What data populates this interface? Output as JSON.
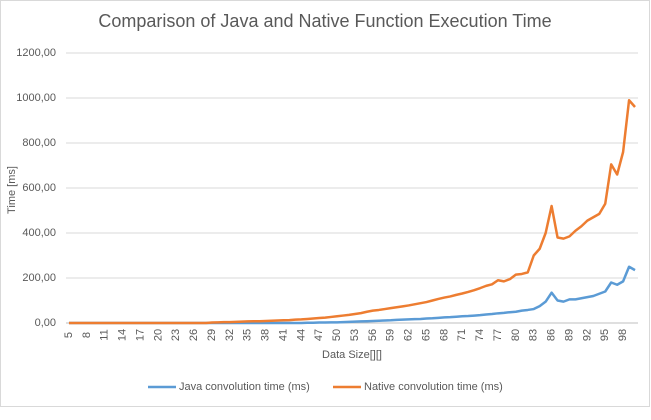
{
  "chart_data": {
    "type": "line",
    "title": "Comparison of Java and Native Function Execution Time",
    "x_label": "Data Size[][]",
    "y_label": "Time [ms]",
    "x": [
      5,
      6,
      7,
      8,
      9,
      10,
      11,
      12,
      13,
      14,
      15,
      16,
      17,
      18,
      19,
      20,
      21,
      22,
      23,
      24,
      25,
      26,
      27,
      28,
      29,
      30,
      31,
      32,
      33,
      34,
      35,
      36,
      37,
      38,
      39,
      40,
      41,
      42,
      43,
      44,
      45,
      46,
      47,
      48,
      49,
      50,
      51,
      52,
      53,
      54,
      55,
      56,
      57,
      58,
      59,
      60,
      61,
      62,
      63,
      64,
      65,
      66,
      67,
      68,
      69,
      70,
      71,
      72,
      73,
      74,
      75,
      76,
      77,
      78,
      79,
      80,
      81,
      82,
      83,
      84,
      85,
      86,
      87,
      88,
      89,
      90,
      91,
      92,
      93,
      94,
      95,
      96,
      97,
      98,
      99,
      100
    ],
    "series": [
      {
        "name": "Java convolution time (ms)",
        "color": "#5b9bd5",
        "values": [
          0,
          0,
          0,
          0,
          0,
          0,
          0,
          0,
          0,
          0,
          0,
          0,
          0,
          0,
          0,
          0,
          0,
          0,
          0,
          0,
          0,
          0,
          0,
          0,
          0,
          0,
          0,
          0,
          0,
          0,
          0,
          0,
          0,
          0,
          0,
          0,
          0,
          0,
          0,
          0,
          1,
          1,
          2,
          2,
          3,
          3,
          4,
          5,
          6,
          7,
          8,
          9,
          10,
          11,
          12,
          14,
          15,
          16,
          17,
          18,
          20,
          21,
          23,
          25,
          26,
          28,
          30,
          31,
          33,
          35,
          38,
          40,
          43,
          45,
          48,
          50,
          55,
          58,
          62,
          75,
          95,
          135,
          100,
          95,
          105,
          105,
          110,
          115,
          120,
          130,
          140,
          180,
          170,
          185,
          250,
          235
        ]
      },
      {
        "name": "Native convolution time (ms)",
        "color": "#ed7d31",
        "values": [
          0,
          0,
          0,
          0,
          0,
          0,
          0,
          0,
          0,
          0,
          0,
          0,
          0,
          0,
          0,
          0,
          0,
          0,
          0,
          0,
          0,
          0,
          0,
          0,
          2,
          3,
          4,
          4,
          5,
          6,
          7,
          8,
          8,
          9,
          10,
          11,
          12,
          13,
          15,
          16,
          18,
          20,
          22,
          24,
          27,
          30,
          33,
          36,
          40,
          44,
          50,
          55,
          58,
          62,
          66,
          70,
          74,
          78,
          83,
          88,
          93,
          100,
          107,
          113,
          118,
          125,
          131,
          138,
          146,
          155,
          165,
          172,
          190,
          185,
          195,
          215,
          218,
          225,
          300,
          330,
          400,
          520,
          380,
          375,
          385,
          410,
          430,
          455,
          470,
          485,
          530,
          705,
          660,
          760,
          990,
          960
        ]
      }
    ],
    "xlim": [
      4.5,
      100.5
    ],
    "xticks": [
      5,
      8,
      11,
      14,
      17,
      20,
      23,
      26,
      29,
      32,
      35,
      38,
      41,
      44,
      47,
      50,
      53,
      56,
      59,
      62,
      65,
      68,
      71,
      74,
      77,
      80,
      83,
      86,
      89,
      92,
      95,
      98
    ],
    "ylim": [
      0,
      1200
    ],
    "yticks": [
      {
        "value": 0,
        "label": "0,00"
      },
      {
        "value": 200,
        "label": "200,00"
      },
      {
        "value": 400,
        "label": "400,00"
      },
      {
        "value": 600,
        "label": "600,00"
      },
      {
        "value": 800,
        "label": "800,00"
      },
      {
        "value": 1000,
        "label": "1000,00"
      },
      {
        "value": 1200,
        "label": "1200,00"
      }
    ],
    "grid": true,
    "legend": "bottom"
  }
}
